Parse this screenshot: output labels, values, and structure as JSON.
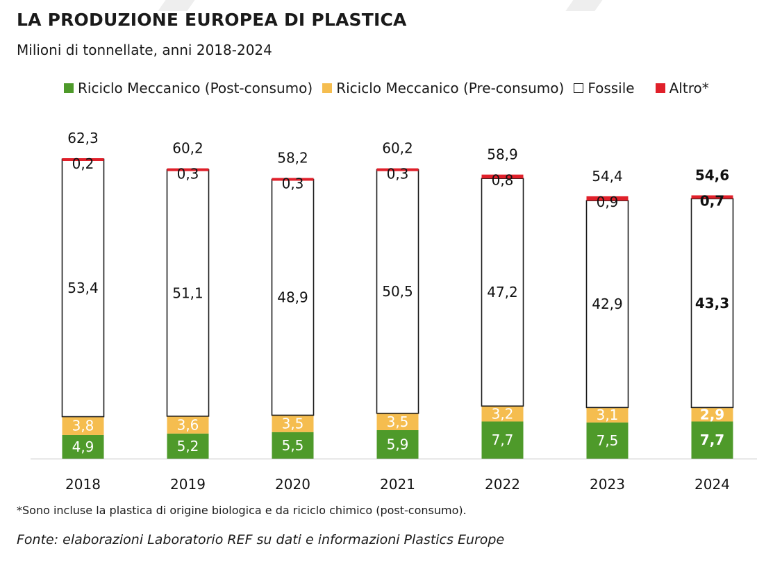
{
  "title": "LA PRODUZIONE EUROPEA DI PLASTICA",
  "subtitle": "Milioni di tonnellate, anni 2018-2024",
  "note": "*Sono incluse la plastica di origine biologica e da riciclo chimico (post-consumo).",
  "source": "Fonte: elaborazioni Laboratorio REF su dati e informazioni Plastics Europe",
  "legend": [
    {
      "label": "Riciclo Meccanico (Post-consumo)",
      "color": "#4e9a2a"
    },
    {
      "label": "Riciclo Meccanico (Pre-consumo)",
      "color": "#f5bd4f"
    },
    {
      "label": "Fossile",
      "color": "#ffffff"
    },
    {
      "label": "Altro*",
      "color": "#e0202a"
    }
  ],
  "chart_data": {
    "type": "bar",
    "stacked": true,
    "categories": [
      "2018",
      "2019",
      "2020",
      "2021",
      "2022",
      "2023",
      "2024"
    ],
    "series": [
      {
        "name": "Riciclo Meccanico (Post-consumo)",
        "color": "#4e9a2a",
        "values": [
          4.9,
          5.2,
          5.5,
          5.9,
          7.7,
          7.5,
          7.7
        ],
        "labels": [
          "4,9",
          "5,2",
          "5,5",
          "5,9",
          "7,7",
          "7,5",
          "7,7"
        ]
      },
      {
        "name": "Riciclo Meccanico (Pre-consumo)",
        "color": "#f5bd4f",
        "values": [
          3.8,
          3.6,
          3.5,
          3.5,
          3.2,
          3.1,
          2.9
        ],
        "labels": [
          "3,8",
          "3,6",
          "3,5",
          "3,5",
          "3,2",
          "3,1",
          "2,9"
        ]
      },
      {
        "name": "Fossile",
        "color": "#ffffff",
        "values": [
          53.4,
          51.1,
          48.9,
          50.5,
          47.2,
          42.9,
          43.3
        ],
        "labels": [
          "53,4",
          "51,1",
          "48,9",
          "50,5",
          "47,2",
          "42,9",
          "43,3"
        ]
      },
      {
        "name": "Altro*",
        "color": "#e0202a",
        "values": [
          0.2,
          0.3,
          0.3,
          0.3,
          0.8,
          0.9,
          0.7
        ],
        "labels": [
          "0,2",
          "0,3",
          "0,3",
          "0,3",
          "0,8",
          "0,9",
          "0,7"
        ]
      }
    ],
    "totals": [
      62.3,
      60.2,
      58.2,
      60.2,
      58.9,
      54.4,
      54.6
    ],
    "total_labels": [
      "62,3",
      "60,2",
      "58,2",
      "60,2",
      "58,9",
      "54,4",
      "54,6"
    ],
    "highlight_category": "2024",
    "ylim": [
      0,
      62.3
    ],
    "grid": false
  }
}
